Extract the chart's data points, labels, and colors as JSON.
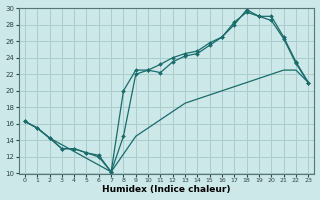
{
  "xlabel": "Humidex (Indice chaleur)",
  "bg_color": "#cce8e8",
  "grid_color": "#aacccc",
  "line_color": "#1a6b6b",
  "xlim": [
    -0.5,
    23.5
  ],
  "ylim": [
    10,
    30
  ],
  "xticks": [
    0,
    1,
    2,
    3,
    4,
    5,
    6,
    7,
    8,
    9,
    10,
    11,
    12,
    13,
    14,
    15,
    16,
    17,
    18,
    19,
    20,
    21,
    22,
    23
  ],
  "yticks": [
    10,
    12,
    14,
    16,
    18,
    20,
    22,
    24,
    26,
    28,
    30
  ],
  "line1_x": [
    0,
    1,
    2,
    3,
    4,
    5,
    6,
    7,
    8,
    9,
    10,
    11,
    12,
    13,
    14,
    15,
    16,
    17,
    18,
    19,
    20,
    21,
    22,
    23
  ],
  "line1_y": [
    16.3,
    15.5,
    14.3,
    13.0,
    13.0,
    12.5,
    12.0,
    10.2,
    14.5,
    22.0,
    22.5,
    22.2,
    23.5,
    24.2,
    24.5,
    25.5,
    26.5,
    28.0,
    29.8,
    29.0,
    28.5,
    26.3,
    23.3,
    21.0
  ],
  "line2_x": [
    0,
    1,
    2,
    3,
    4,
    5,
    6,
    7,
    8,
    9,
    10,
    11,
    12,
    13,
    14,
    15,
    16,
    17,
    18,
    19,
    20,
    21,
    22,
    23
  ],
  "line2_y": [
    16.3,
    15.5,
    14.3,
    13.0,
    13.0,
    12.5,
    12.2,
    10.2,
    20.0,
    22.5,
    22.5,
    23.2,
    24.0,
    24.5,
    24.8,
    25.8,
    26.5,
    28.3,
    29.5,
    29.0,
    29.0,
    26.5,
    23.5,
    21.0
  ],
  "line3_x": [
    0,
    1,
    2,
    7,
    9,
    10,
    11,
    12,
    13,
    14,
    15,
    16,
    17,
    18,
    19,
    20,
    21,
    22,
    23
  ],
  "line3_y": [
    16.3,
    15.5,
    14.3,
    10.2,
    14.5,
    15.5,
    16.5,
    17.5,
    18.5,
    19.0,
    19.5,
    20.0,
    20.5,
    21.0,
    21.5,
    22.0,
    22.5,
    22.5,
    21.0
  ]
}
